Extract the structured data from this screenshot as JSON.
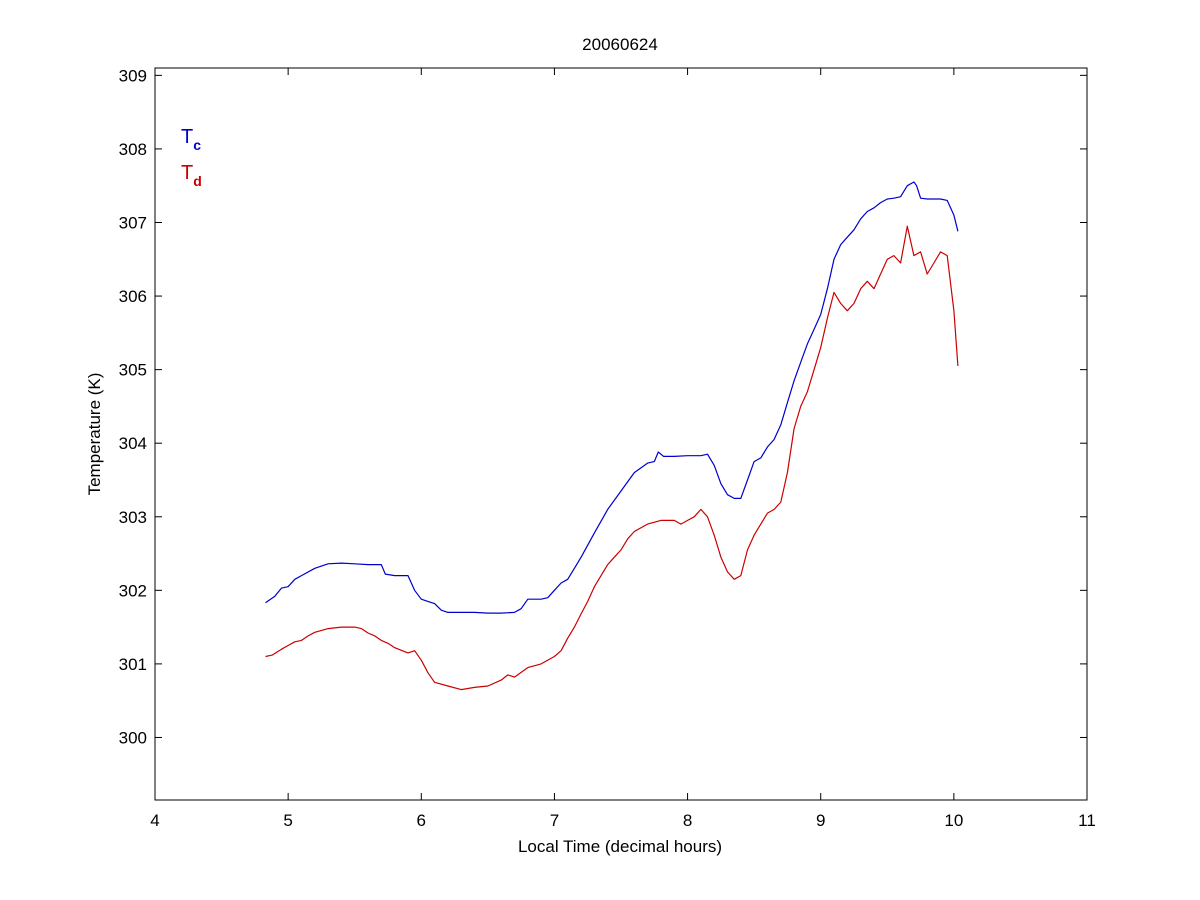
{
  "chart_data": {
    "type": "line",
    "title": "20060624",
    "xlabel": "Local Time (decimal hours)",
    "ylabel": "Temperature (K)",
    "xlim": [
      4,
      11
    ],
    "ylim": [
      299.15,
      309.1
    ],
    "xticks": [
      "4",
      "5",
      "6",
      "7",
      "8",
      "9",
      "10",
      "11"
    ],
    "yticks": [
      "300",
      "301",
      "302",
      "303",
      "304",
      "305",
      "306",
      "307",
      "308",
      "309"
    ],
    "grid": false,
    "legend": {
      "placement": "top-left",
      "entries": [
        {
          "main": "T",
          "sub": "c",
          "color": "#0000cc"
        },
        {
          "main": "T",
          "sub": "d",
          "color": "#cc0000"
        }
      ]
    },
    "series": [
      {
        "color": "#0000cc",
        "x": [
          4.83,
          4.9,
          4.95,
          5.0,
          5.05,
          5.1,
          5.2,
          5.3,
          5.4,
          5.5,
          5.6,
          5.7,
          5.73,
          5.8,
          5.9,
          5.95,
          6.0,
          6.05,
          6.1,
          6.15,
          6.2,
          6.3,
          6.4,
          6.5,
          6.6,
          6.7,
          6.75,
          6.8,
          6.9,
          6.95,
          7.0,
          7.05,
          7.1,
          7.15,
          7.2,
          7.3,
          7.4,
          7.5,
          7.6,
          7.7,
          7.75,
          7.78,
          7.82,
          7.9,
          8.0,
          8.1,
          8.15,
          8.2,
          8.25,
          8.3,
          8.35,
          8.4,
          8.45,
          8.5,
          8.55,
          8.6,
          8.65,
          8.7,
          8.75,
          8.8,
          8.85,
          8.9,
          8.95,
          9.0,
          9.05,
          9.1,
          9.15,
          9.2,
          9.25,
          9.3,
          9.35,
          9.4,
          9.45,
          9.5,
          9.55,
          9.6,
          9.65,
          9.7,
          9.72,
          9.75,
          9.8,
          9.85,
          9.9,
          9.95,
          10.0,
          10.03
        ],
        "y": [
          301.83,
          301.92,
          302.03,
          302.05,
          302.15,
          302.2,
          302.3,
          302.36,
          302.37,
          302.36,
          302.35,
          302.35,
          302.22,
          302.2,
          302.2,
          302.0,
          301.88,
          301.85,
          301.82,
          301.73,
          301.7,
          301.7,
          301.7,
          301.69,
          301.69,
          301.7,
          301.75,
          301.88,
          301.88,
          301.9,
          302.0,
          302.1,
          302.15,
          302.3,
          302.45,
          302.78,
          303.1,
          303.35,
          303.6,
          303.73,
          303.75,
          303.88,
          303.82,
          303.82,
          303.83,
          303.83,
          303.85,
          303.7,
          303.45,
          303.3,
          303.25,
          303.25,
          303.5,
          303.75,
          303.8,
          303.95,
          304.05,
          304.25,
          304.55,
          304.85,
          305.1,
          305.35,
          305.55,
          305.75,
          306.1,
          306.5,
          306.7,
          306.8,
          306.9,
          307.05,
          307.15,
          307.2,
          307.27,
          307.32,
          307.33,
          307.35,
          307.5,
          307.55,
          307.5,
          307.33,
          307.32,
          307.32,
          307.32,
          307.3,
          307.1,
          306.88
        ]
      },
      {
        "color": "#cc0000",
        "x": [
          4.83,
          4.88,
          4.95,
          5.0,
          5.05,
          5.1,
          5.15,
          5.2,
          5.3,
          5.4,
          5.5,
          5.55,
          5.6,
          5.65,
          5.7,
          5.75,
          5.8,
          5.9,
          5.95,
          6.0,
          6.05,
          6.1,
          6.2,
          6.3,
          6.4,
          6.5,
          6.6,
          6.65,
          6.7,
          6.8,
          6.9,
          7.0,
          7.05,
          7.1,
          7.15,
          7.2,
          7.25,
          7.3,
          7.4,
          7.45,
          7.5,
          7.55,
          7.6,
          7.7,
          7.8,
          7.9,
          7.95,
          8.0,
          8.05,
          8.1,
          8.15,
          8.2,
          8.25,
          8.3,
          8.35,
          8.4,
          8.45,
          8.5,
          8.55,
          8.6,
          8.65,
          8.7,
          8.75,
          8.8,
          8.85,
          8.9,
          8.95,
          9.0,
          9.05,
          9.1,
          9.15,
          9.2,
          9.25,
          9.3,
          9.35,
          9.4,
          9.45,
          9.5,
          9.55,
          9.6,
          9.65,
          9.7,
          9.75,
          9.8,
          9.85,
          9.9,
          9.95,
          10.0,
          10.03
        ],
        "y": [
          301.1,
          301.12,
          301.2,
          301.25,
          301.3,
          301.32,
          301.38,
          301.43,
          301.48,
          301.5,
          301.5,
          301.48,
          301.42,
          301.38,
          301.32,
          301.28,
          301.22,
          301.15,
          301.18,
          301.05,
          300.88,
          300.75,
          300.7,
          300.65,
          300.68,
          300.7,
          300.78,
          300.85,
          300.82,
          300.95,
          301.0,
          301.1,
          301.18,
          301.35,
          301.5,
          301.68,
          301.85,
          302.05,
          302.35,
          302.45,
          302.55,
          302.7,
          302.8,
          302.9,
          302.95,
          302.95,
          302.9,
          302.95,
          303.0,
          303.1,
          303.0,
          302.75,
          302.45,
          302.25,
          302.15,
          302.2,
          302.55,
          302.75,
          302.9,
          303.05,
          303.1,
          303.2,
          303.6,
          304.2,
          304.5,
          304.7,
          305.0,
          305.3,
          305.7,
          306.05,
          305.9,
          305.8,
          305.9,
          306.1,
          306.2,
          306.1,
          306.3,
          306.5,
          306.55,
          306.45,
          306.95,
          306.55,
          306.6,
          306.3,
          306.45,
          306.6,
          306.55,
          305.8,
          305.05
        ]
      }
    ]
  }
}
